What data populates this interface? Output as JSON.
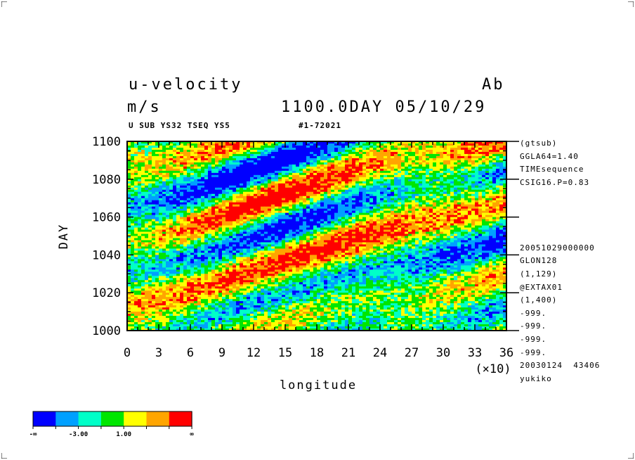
{
  "header": {
    "title": "u-velocity",
    "title_right": "Ab",
    "units": "m/s",
    "time_label": "1100.0DAY 05/10/29",
    "sub_left": "U SUB YS32 TSEQ YS5",
    "sub_mid": "#1-72021"
  },
  "side_info": [
    "(gtsub)",
    "GGLA64=1.40",
    "TIMEsequence",
    "CSIG16.P=0.83",
    "",
    "",
    "",
    "",
    "20051029000000",
    "GLON128",
    "(1,129)",
    "@EXTAX01",
    "(1,400)",
    "-999.",
    "-999.",
    "-999.",
    "-999.",
    "20030124  43406",
    "yukiko"
  ],
  "chart_data": {
    "type": "heatmap",
    "title": "u-velocity",
    "xlabel": "longitude",
    "xlabel_multiplier": "(×10)",
    "ylabel": "DAY",
    "xlim": [
      0,
      36
    ],
    "ylim": [
      1000,
      1100
    ],
    "x_ticks": [
      "0",
      "3",
      "6",
      "9",
      "12",
      "15",
      "18",
      "21",
      "24",
      "27",
      "30",
      "33",
      "36"
    ],
    "y_ticks": [
      "1000",
      "1020",
      "1040",
      "1060",
      "1080",
      "1100"
    ],
    "colorbar": {
      "colors": [
        "#0000ff",
        "#00a0ff",
        "#00ffc8",
        "#00e600",
        "#ffff00",
        "#ffa500",
        "#ff0000"
      ],
      "labels": [
        "-∞",
        "-3.00",
        "1.00",
        "∞"
      ]
    },
    "palette_accent": {
      "blue": "#0000ff",
      "red": "#ff0000"
    }
  }
}
